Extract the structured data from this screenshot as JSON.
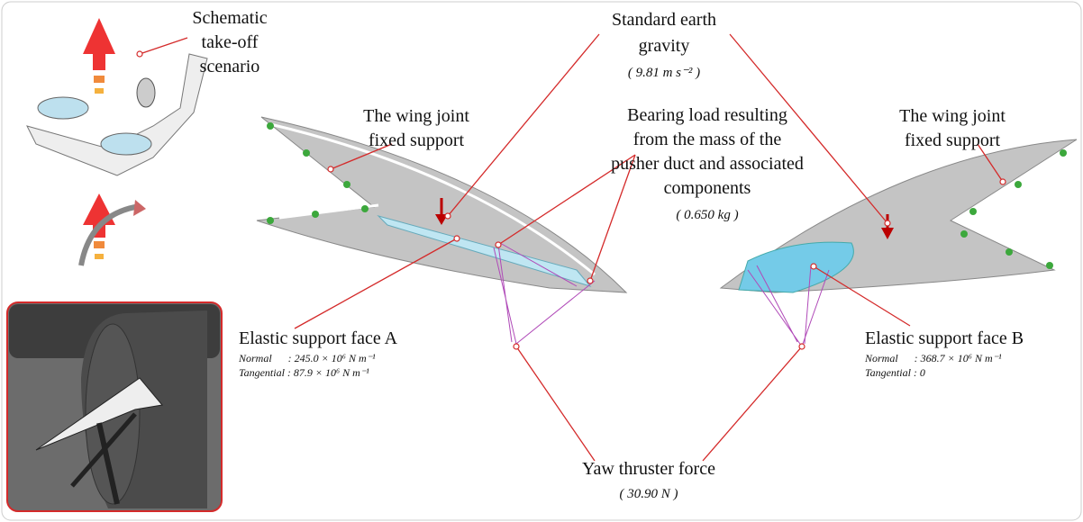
{
  "schematic": {
    "lines": [
      "Schematic",
      "take-off",
      "scenario"
    ]
  },
  "gravity": {
    "lines": [
      "Standard earth",
      "gravity"
    ],
    "value": "( 9.81 m s⁻² )"
  },
  "wing_joint_left": {
    "lines": [
      "The wing joint",
      "fixed support"
    ]
  },
  "wing_joint_right": {
    "lines": [
      "The wing joint",
      "fixed support"
    ]
  },
  "bearing_load": {
    "lines": [
      "Bearing load resulting",
      "from the mass of the",
      "pusher duct and associated",
      "components"
    ],
    "value": "( 0.650 kg )"
  },
  "face_a": {
    "title": "Elastic support face A",
    "normal": "Normal      : 245.0 × 10⁶ N m⁻¹",
    "tangential": "Tangential : 87.9 × 10⁶ N m⁻¹"
  },
  "face_b": {
    "title": "Elastic support face B",
    "normal": "Normal      : 368.7 × 10⁶ N m⁻¹",
    "tangential": "Tangential : 0"
  },
  "yaw": {
    "lines": [
      "Yaw thruster force"
    ],
    "value": "( 30.90 N )"
  }
}
